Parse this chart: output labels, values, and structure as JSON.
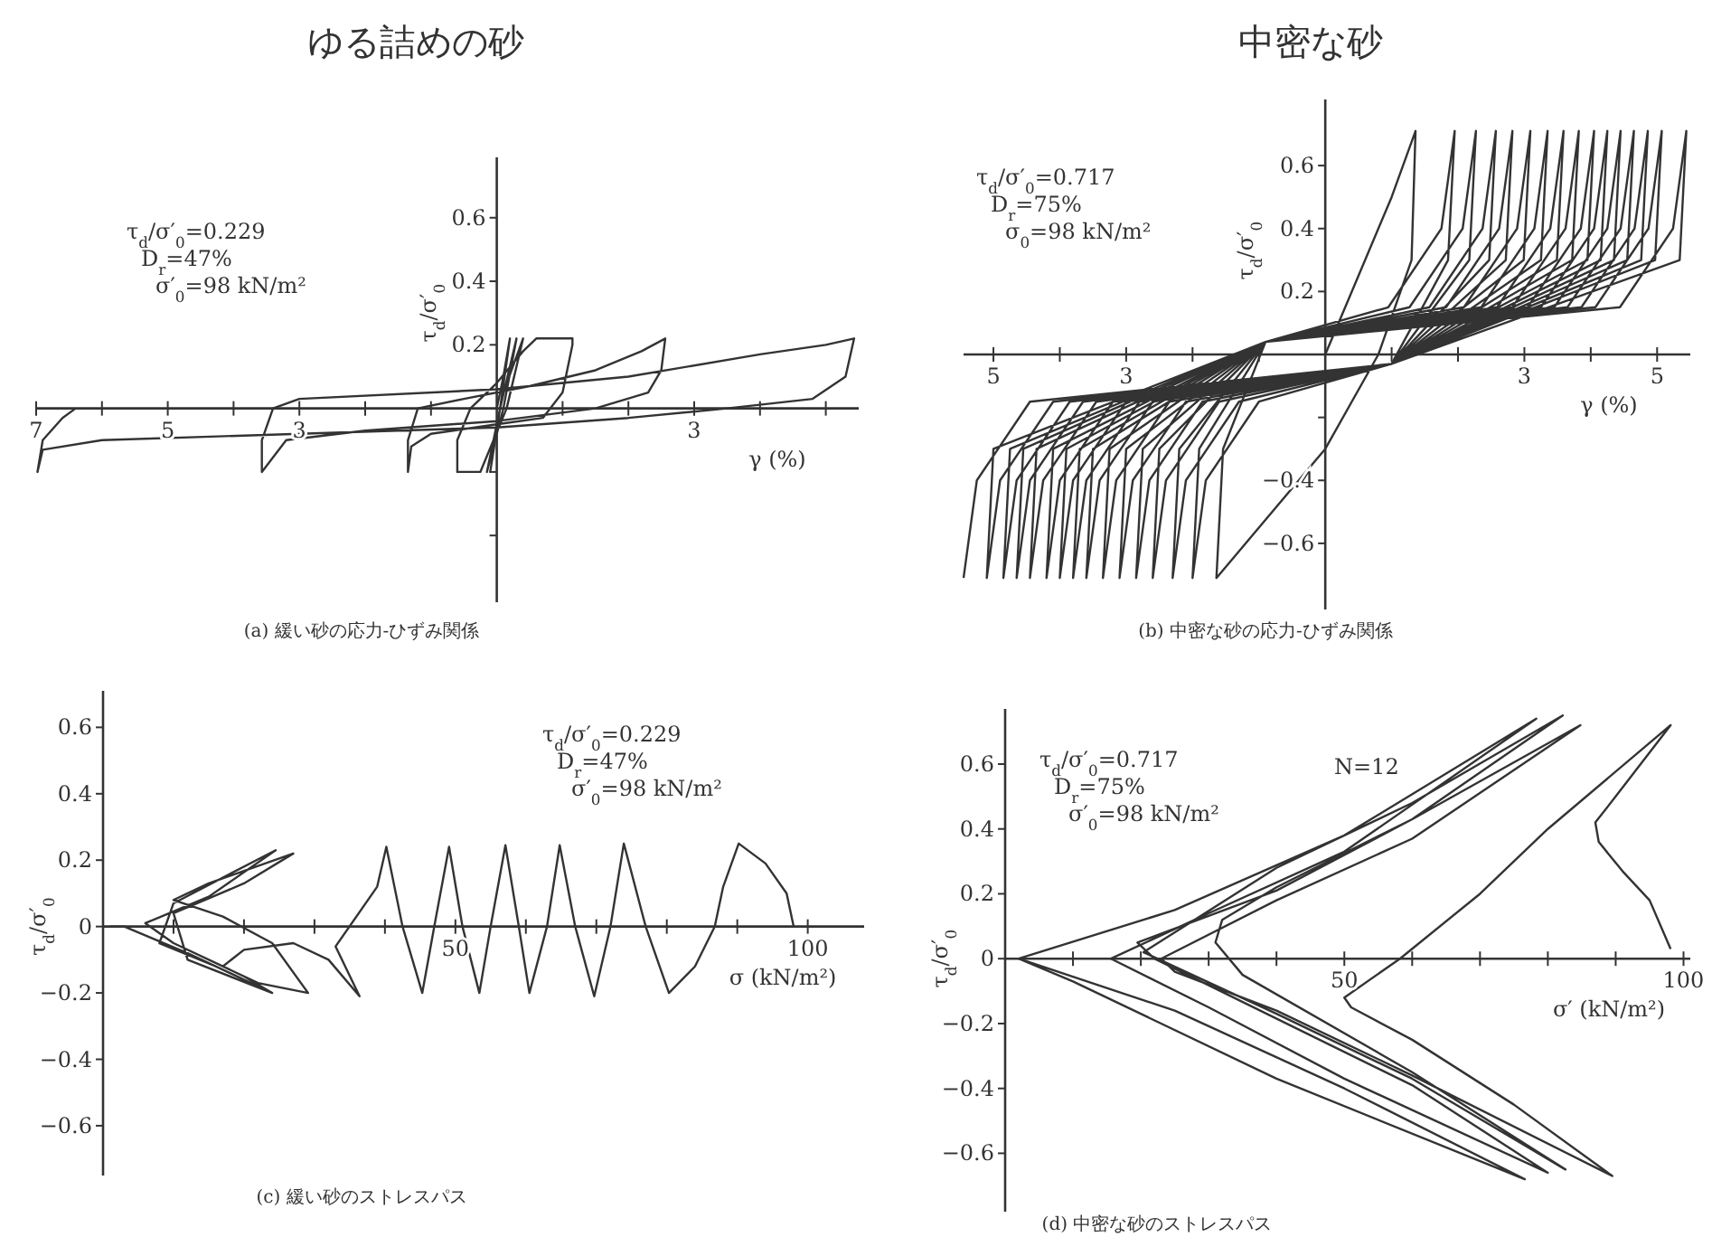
{
  "chart_data": [
    {
      "type": "line",
      "title": "ゆる詰めの砂",
      "xlabel": "γ (%)",
      "ylabel": "τ$_{d}$/σ′$_{0}$",
      "xlim": [
        -7,
        5.5
      ],
      "ylim": [
        -0.61,
        0.79
      ],
      "xticks": [
        {
          "value": -7,
          "label": "7"
        },
        {
          "value": -6,
          "label": null
        },
        {
          "value": -5,
          "label": "5"
        },
        {
          "value": -4,
          "label": null
        },
        {
          "value": -3,
          "label": "3"
        },
        {
          "value": -2,
          "label": null
        },
        {
          "value": -1,
          "label": null
        },
        {
          "value": 1,
          "label": null
        },
        {
          "value": 2,
          "label": null
        },
        {
          "value": 3,
          "label": "3"
        },
        {
          "value": 4,
          "label": null
        },
        {
          "value": 5,
          "label": null
        }
      ],
      "yticks": [
        {
          "value": -0.4,
          "label": null
        },
        {
          "value": -0.2,
          "label": null
        },
        0.2,
        0.4,
        0.6
      ],
      "grid": false,
      "line_style": "solid",
      "marker": "none",
      "annotations": [
        "τ$_{d}$/σ′$_{0}$=0.229",
        "D$_{r}$=47%",
        "σ′$_{0}$=98 kN/m²",
        "(a) 緩い砂の応力-ひずみ関係"
      ],
      "series": [
        {
          "color": "#333333",
          "x": [
            0,
            0.1,
            0.2,
            0.05,
            -0.1,
            0.05,
            0.3,
            0.1,
            -0.15,
            0.1,
            0.4,
            0.15,
            -0.25,
            -0.6,
            -0.6,
            -0.4,
            0.0,
            0.4,
            0.6,
            1.15,
            1.15,
            1.0,
            0.7,
            0,
            -1.0,
            -1.3,
            -1.35,
            -1.35,
            -1.2,
            -0.5,
            0.5,
            1.5,
            2.2,
            2.56,
            2.5,
            2.3,
            1.5,
            0,
            -2,
            -3.2,
            -3.57,
            -3.57,
            -3.4,
            -3.0,
            0,
            2,
            4,
            5.0,
            5.43,
            5.3,
            4.8,
            3.5,
            2,
            0,
            -3,
            -6,
            -6.9,
            -6.98,
            -6.9,
            -6.6,
            -6.4
          ],
          "values": [
            0,
            0.1,
            0.22,
            0,
            -0.2,
            0,
            0.22,
            0,
            -0.2,
            0.05,
            0.22,
            0,
            -0.2,
            -0.2,
            -0.1,
            0,
            0.08,
            0.18,
            0.22,
            0.22,
            0.2,
            0.05,
            -0.03,
            -0.05,
            -0.08,
            -0.12,
            -0.2,
            -0.1,
            0.0,
            0.03,
            0.07,
            0.12,
            0.18,
            0.22,
            0.12,
            0.05,
            0.0,
            -0.04,
            -0.07,
            -0.1,
            -0.2,
            -0.1,
            0.0,
            0.03,
            0.06,
            0.1,
            0.17,
            0.2,
            0.22,
            0.1,
            0.03,
            0.0,
            -0.03,
            -0.06,
            -0.08,
            -0.1,
            -0.13,
            -0.2,
            -0.1,
            -0.03,
            0.0
          ]
        }
      ]
    },
    {
      "type": "line",
      "title": "中密な砂",
      "xlabel": "γ (%)",
      "ylabel": "τ$_{d}$/σ′$_{0}$",
      "xlim": [
        -5.45,
        5.5
      ],
      "ylim": [
        -0.81,
        0.81
      ],
      "xticks": [
        {
          "value": -5,
          "label": "5"
        },
        {
          "value": -4,
          "label": null
        },
        {
          "value": -3,
          "label": "3"
        },
        {
          "value": -2,
          "label": null
        },
        {
          "value": -1,
          "label": null
        },
        {
          "value": 1,
          "label": null
        },
        {
          "value": 2,
          "label": null
        },
        {
          "value": 3,
          "label": "3"
        },
        {
          "value": 4,
          "label": null
        },
        {
          "value": 5,
          "label": "5"
        }
      ],
      "yticks": [
        {
          "value": -0.6,
          "label": "−0.6"
        },
        {
          "value": -0.4,
          "label": "−0.4"
        },
        {
          "value": -0.2,
          "label": null
        },
        0.2,
        0.4,
        0.6
      ],
      "grid": false,
      "line_style": "solid",
      "marker": "none",
      "annotations": [
        "τ$_{d}$/σ′$_{0}$=0.717",
        "D$_{r}$=75%",
        "σ$_{0}$=98 kN/m²",
        "(b) 中密な砂の応力-ひずみ関係"
      ],
      "series": [
        {
          "color": "#333333",
          "x": [
            0,
            0.5,
            1.0,
            1.36,
            1.3,
            0.8,
            0,
            -1.0,
            -1.64,
            -1.54,
            -0.9,
            0.95,
            1.75,
            1.95,
            1.85,
            1.0,
            -1.0,
            -1.8,
            -2.0,
            -1.9,
            -0.9,
            1.27,
            2.07,
            2.27,
            2.17,
            1.0,
            -1.3,
            -2.1,
            -2.3,
            -2.2,
            -0.9,
            1.57,
            2.37,
            2.57,
            2.47,
            1.0,
            -1.6,
            -2.4,
            -2.6,
            -2.5,
            -0.9,
            1.82,
            2.62,
            2.82,
            2.72,
            1.0,
            -1.85,
            -2.65,
            -2.85,
            -2.75,
            -0.9,
            2.09,
            2.89,
            3.09,
            2.99,
            1.0,
            -2.1,
            -2.9,
            -3.1,
            -3.0,
            -0.9,
            2.35,
            3.15,
            3.35,
            3.25,
            1.0,
            -2.35,
            -3.15,
            -3.35,
            -3.25,
            -0.9,
            2.59,
            3.39,
            3.59,
            3.49,
            1.0,
            -2.6,
            -3.4,
            -3.6,
            -3.5,
            -0.9,
            2.82,
            3.62,
            3.82,
            3.72,
            1.0,
            -2.8,
            -3.6,
            -3.8,
            -3.7,
            -0.9,
            3.05,
            3.85,
            4.05,
            3.95,
            1.0,
            -3.0,
            -3.8,
            -4.0,
            -3.9,
            -0.9,
            3.25,
            4.05,
            4.25,
            4.15,
            1.0,
            -3.2,
            -4.0,
            -4.2,
            -4.1,
            -0.9,
            3.45,
            4.25,
            4.45,
            4.35,
            1.0,
            -3.45,
            -4.25,
            -4.45,
            -4.35,
            -0.9,
            3.65,
            4.45,
            4.65,
            4.55,
            1.0,
            -3.65,
            -4.45,
            -4.65,
            -4.55,
            -0.9,
            3.86,
            4.66,
            4.86,
            4.76,
            1.0,
            -3.85,
            -4.65,
            -4.85,
            -4.75,
            -0.9,
            4.07,
            4.87,
            5.07,
            4.97,
            1.0,
            -4.1,
            -4.9,
            -5.1,
            -5.0,
            -0.9,
            4.44,
            5.24,
            5.44,
            5.34,
            1.0,
            -4.45,
            -5.25,
            -5.45
          ],
          "values": [
            0,
            0.25,
            0.5,
            0.71,
            0.3,
            0,
            -0.3,
            -0.55,
            -0.71,
            -0.3,
            0.04,
            0.15,
            0.4,
            0.71,
            0.3,
            -0.03,
            -0.15,
            -0.4,
            -0.71,
            -0.3,
            0.04,
            0.15,
            0.4,
            0.71,
            0.3,
            -0.03,
            -0.15,
            -0.4,
            -0.71,
            -0.3,
            0.04,
            0.15,
            0.4,
            0.71,
            0.3,
            -0.03,
            -0.15,
            -0.4,
            -0.71,
            -0.3,
            0.04,
            0.15,
            0.4,
            0.71,
            0.3,
            -0.03,
            -0.15,
            -0.4,
            -0.71,
            -0.3,
            0.04,
            0.15,
            0.4,
            0.71,
            0.3,
            -0.03,
            -0.15,
            -0.4,
            -0.71,
            -0.3,
            0.04,
            0.15,
            0.4,
            0.71,
            0.3,
            -0.03,
            -0.15,
            -0.4,
            -0.71,
            -0.3,
            0.04,
            0.15,
            0.4,
            0.71,
            0.3,
            -0.03,
            -0.15,
            -0.4,
            -0.71,
            -0.3,
            0.04,
            0.15,
            0.4,
            0.71,
            0.3,
            -0.03,
            -0.15,
            -0.4,
            -0.71,
            -0.3,
            0.04,
            0.15,
            0.4,
            0.71,
            0.3,
            -0.03,
            -0.15,
            -0.4,
            -0.71,
            -0.3,
            0.04,
            0.15,
            0.4,
            0.71,
            0.3,
            -0.03,
            -0.15,
            -0.4,
            -0.71,
            -0.3,
            0.04,
            0.15,
            0.4,
            0.71,
            0.3,
            -0.03,
            -0.15,
            -0.4,
            -0.71,
            -0.3,
            0.04,
            0.15,
            0.4,
            0.71,
            0.3,
            -0.03,
            -0.15,
            -0.4,
            -0.71,
            -0.3,
            0.04,
            0.15,
            0.4,
            0.71,
            0.3,
            -0.03,
            -0.15,
            -0.4,
            -0.71,
            -0.3,
            0.04,
            0.15,
            0.4,
            0.71,
            0.3,
            -0.03,
            -0.15,
            -0.4,
            -0.71,
            -0.3,
            0.04,
            0.15,
            0.4,
            0.71,
            0.3,
            -0.03,
            -0.15,
            -0.4,
            -0.71
          ]
        }
      ]
    },
    {
      "type": "line",
      "xlabel": "σ (kN/m²)",
      "ylabel": "τ$_{d}$/σ′$_{0}$",
      "xlim": [
        0,
        108
      ],
      "ylim": [
        -0.75,
        0.71
      ],
      "xticks": [
        {
          "value": 10,
          "label": null
        },
        {
          "value": 20,
          "label": null
        },
        {
          "value": 30,
          "label": null
        },
        {
          "value": 40,
          "label": null
        },
        {
          "value": 50,
          "label": "50"
        },
        {
          "value": 60,
          "label": null
        },
        {
          "value": 70,
          "label": null
        },
        {
          "value": 80,
          "label": null
        },
        {
          "value": 90,
          "label": null
        },
        {
          "value": 100,
          "label": "100"
        }
      ],
      "yticks": [
        {
          "value": -0.6,
          "label": "−0.6"
        },
        {
          "value": -0.4,
          "label": "−0.4"
        },
        {
          "value": -0.2,
          "label": "−0.2"
        },
        0,
        0.2,
        0.4,
        0.6
      ],
      "grid": false,
      "line_style": "solid",
      "marker": "none",
      "annotations": [
        "τ$_{d}$/σ′$_{0}$=0.229",
        "D$_{r}$=47%",
        "σ′$_{0}$=98 kN/m²",
        "(c) 緩い砂のストレスパス"
      ],
      "series": [
        {
          "color": "#333333",
          "x": [
            98,
            97,
            94,
            90.2,
            88,
            86.8,
            84,
            80.3,
            77,
            73.9,
            72,
            69.7,
            67,
            64.8,
            63,
            60.5,
            59,
            57.1,
            55,
            53.4,
            51,
            49.1,
            47,
            45.3,
            42.5,
            40.2,
            38.9,
            33,
            36.4,
            32,
            27,
            20,
            17,
            22,
            29.1,
            24,
            17,
            10,
            15,
            27,
            20,
            10,
            12,
            24,
            16,
            8,
            10,
            24.5,
            15,
            6,
            10,
            20,
            24,
            12,
            3,
            1
          ],
          "values": [
            0,
            0.1,
            0.19,
            0.25,
            0.12,
            0,
            -0.12,
            -0.2,
            0,
            0.25,
            0,
            -0.21,
            0,
            0.245,
            0,
            -0.2,
            0,
            0.245,
            0,
            -0.2,
            0,
            0.24,
            0,
            -0.2,
            0,
            0.24,
            0.12,
            -0.06,
            -0.21,
            -0.1,
            -0.05,
            -0.07,
            -0.12,
            -0.17,
            -0.2,
            -0.05,
            0.03,
            0.08,
            0.13,
            0.22,
            0.13,
            0.04,
            -0.1,
            -0.2,
            -0.12,
            -0.05,
            0.07,
            0.23,
            0.09,
            0.01,
            -0.05,
            -0.15,
            -0.2,
            -0.08,
            0,
            0
          ]
        }
      ]
    },
    {
      "type": "line",
      "xlabel": "σ′ (kN/m²)",
      "ylabel": "τ$_{d}$/σ′$_{0}$",
      "xlim": [
        0,
        101
      ],
      "ylim": [
        -0.78,
        0.77
      ],
      "xticks": [
        {
          "value": 10,
          "label": null
        },
        {
          "value": 20,
          "label": null
        },
        {
          "value": 30,
          "label": null
        },
        {
          "value": 40,
          "label": null
        },
        50,
        {
          "value": 60,
          "label": null
        },
        {
          "value": 70,
          "label": null
        },
        {
          "value": 80,
          "label": null
        },
        {
          "value": 90,
          "label": null
        },
        100
      ],
      "yticks": [
        {
          "value": -0.6,
          "label": "−0.6"
        },
        {
          "value": -0.4,
          "label": "−0.4"
        },
        {
          "value": -0.2,
          "label": "−0.2"
        },
        0,
        0.2,
        0.4,
        0.6
      ],
      "grid": false,
      "line_style": "solid",
      "marker": "none",
      "annotations": [
        "τ$_{d}$/σ′$_{0}$=0.717",
        "D$_{r}$=75%",
        "σ′$_{0}$=98 kN/m²",
        "N=12",
        "(d) 中密な砂のストレスパス"
      ],
      "series": [
        {
          "color": "#333333",
          "x": [
            98.1,
            95,
            91,
            87.5,
            87,
            90,
            98.1,
            80,
            70,
            58.2,
            50,
            51,
            60,
            75,
            89.5,
            60,
            40,
            25,
            23,
            40,
            60,
            84.8,
            60,
            40,
            32,
            31,
            35,
            60,
            82.6,
            60,
            40,
            20.4,
            40,
            60,
            82.2,
            60,
            40,
            19.5,
            22,
            60,
            80,
            50,
            30,
            15.6,
            30,
            50,
            78.3,
            50,
            25,
            2,
            25,
            50,
            76.6,
            40,
            10,
            2
          ],
          "values": [
            0.03,
            0.18,
            0.27,
            0.36,
            0.42,
            0.5,
            0.72,
            0.4,
            0.2,
            0,
            -0.12,
            -0.15,
            -0.25,
            -0.45,
            -0.67,
            -0.36,
            -0.16,
            -0.04,
            0,
            0.18,
            0.37,
            0.72,
            0.43,
            0.22,
            0.12,
            0.05,
            -0.05,
            -0.35,
            -0.65,
            -0.37,
            -0.17,
            0.02,
            0.28,
            0.48,
            0.75,
            0.43,
            0.21,
            0.05,
            0,
            -0.39,
            -0.66,
            -0.37,
            -0.15,
            0,
            0.14,
            0.33,
            0.74,
            0.38,
            0.15,
            0,
            -0.16,
            -0.4,
            -0.68,
            -0.37,
            -0.07,
            0
          ]
        }
      ]
    }
  ]
}
